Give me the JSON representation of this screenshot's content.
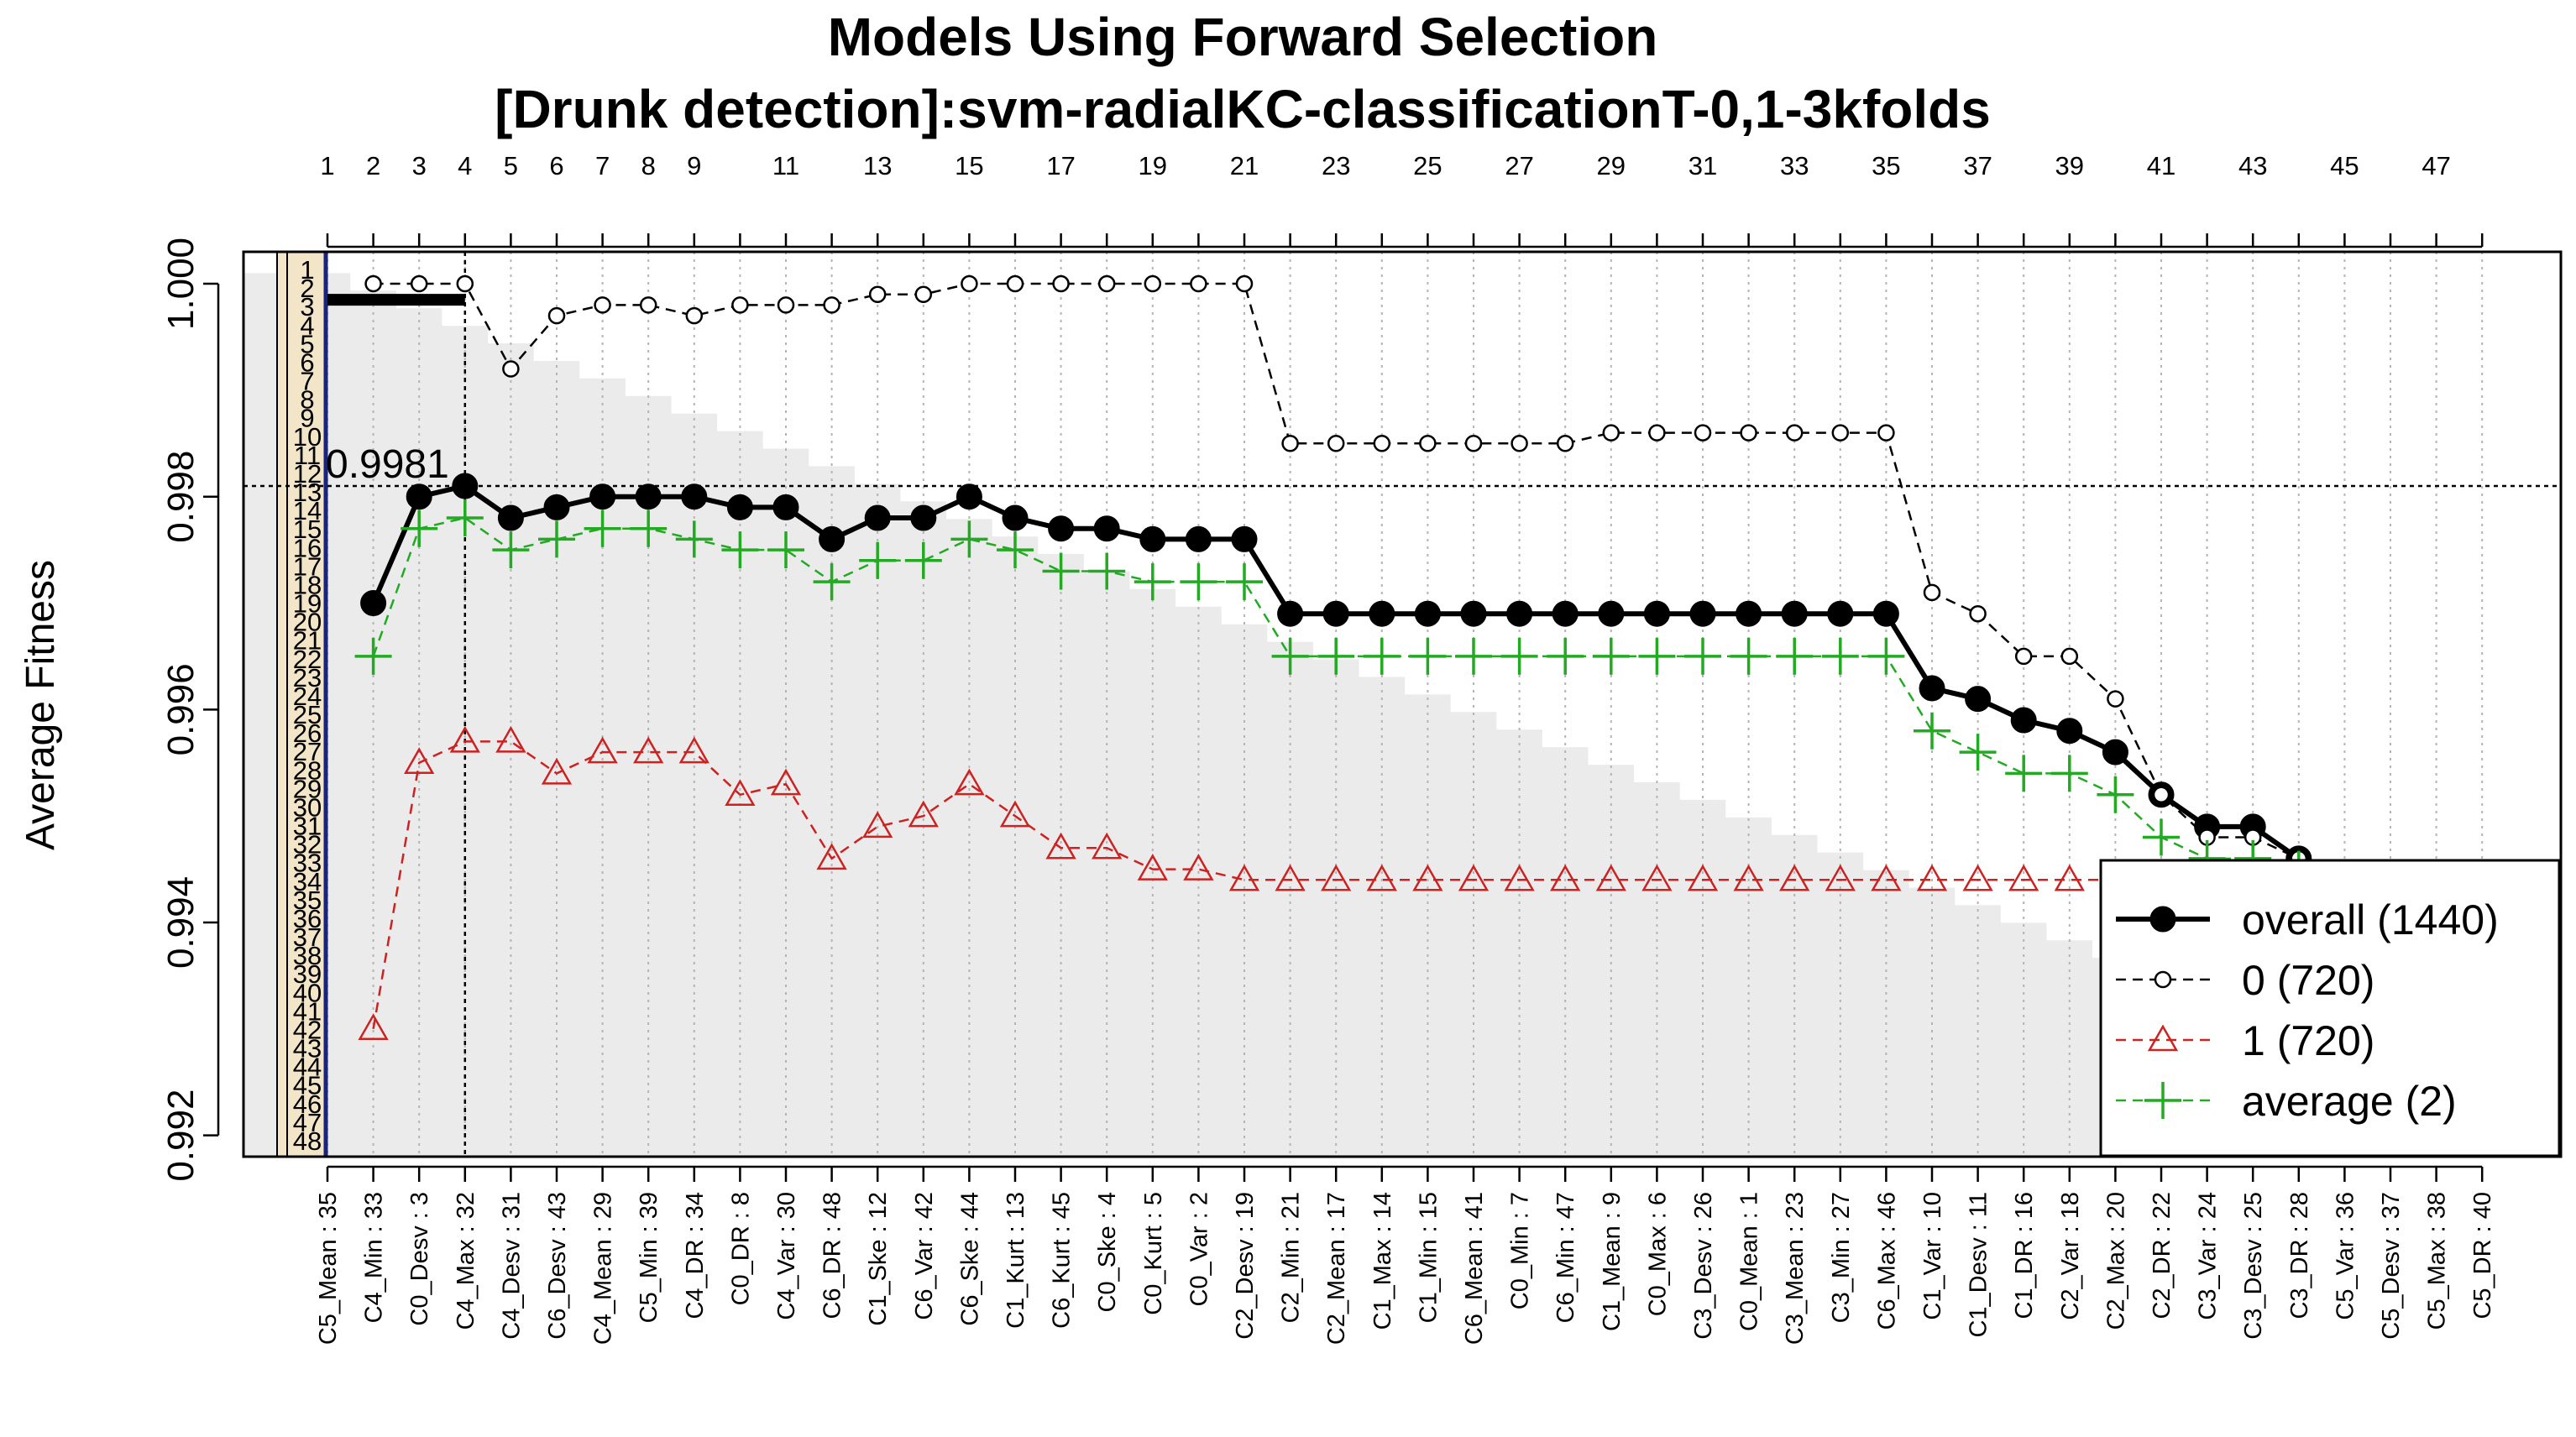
{
  "chart_data": {
    "type": "line",
    "title": "Models Using Forward Selection",
    "subtitle": "[Drunk detection]:svm-radialKC-classificationT-0,1-3kfolds",
    "ylabel": "Average Fitness",
    "xlabel": "",
    "ylim": [
      0.9918,
      1.0003
    ],
    "yticks": [
      0.992,
      0.994,
      0.996,
      0.998,
      1.0
    ],
    "ytick_labels": [
      "0.992",
      "0.994",
      "0.996",
      "0.998",
      "1.000"
    ],
    "top_ticks": [
      1,
      2,
      3,
      4,
      5,
      6,
      7,
      8,
      9,
      11,
      13,
      15,
      17,
      19,
      21,
      23,
      25,
      27,
      29,
      31,
      33,
      35,
      37,
      39,
      41,
      43,
      45,
      47
    ],
    "categories": [
      "C5_Mean : 35",
      "C4_Min : 33",
      "C0_Desv : 3",
      "C4_Max : 32",
      "C4_Desv : 31",
      "C6_Desv : 43",
      "C4_Mean : 29",
      "C5_Min : 39",
      "C4_DR : 34",
      "C0_DR : 8",
      "C4_Var : 30",
      "C6_DR : 48",
      "C1_Ske : 12",
      "C6_Var : 42",
      "C6_Ske : 44",
      "C1_Kurt : 13",
      "C6_Kurt : 45",
      "C0_Ske : 4",
      "C0_Kurt : 5",
      "C0_Var : 2",
      "C2_Desv : 19",
      "C2_Min : 21",
      "C2_Mean : 17",
      "C1_Max : 14",
      "C1_Min : 15",
      "C6_Mean : 41",
      "C0_Min : 7",
      "C6_Min : 47",
      "C1_Mean : 9",
      "C0_Max : 6",
      "C3_Desv : 26",
      "C0_Mean : 1",
      "C3_Mean : 23",
      "C3_Min : 27",
      "C6_Max : 46",
      "C1_Var : 10",
      "C1_Desv : 11",
      "C1_DR : 16",
      "C2_Var : 18",
      "C2_Max : 20",
      "C2_DR : 22",
      "C3_Var : 24",
      "C3_Desv : 25",
      "C3_DR : 28",
      "C5_Var : 36",
      "C5_Desv : 37",
      "C5_Max : 38",
      "C5_DR : 40"
    ],
    "series": [
      {
        "name": "overall (1440)",
        "color": "#000000",
        "marker": "filled-circle",
        "line": "solid",
        "values": [
          null,
          0.997,
          0.998,
          0.9981,
          0.9978,
          0.9979,
          0.998,
          0.998,
          0.998,
          0.9979,
          0.9979,
          0.9976,
          0.9978,
          0.9978,
          0.998,
          0.9978,
          0.9977,
          0.9977,
          0.9976,
          0.9976,
          0.9976,
          0.9969,
          0.9969,
          0.9969,
          0.9969,
          0.9969,
          0.9969,
          0.9969,
          0.9969,
          0.9969,
          0.9969,
          0.9969,
          0.9969,
          0.9969,
          0.9969,
          0.9962,
          0.9961,
          0.9959,
          0.9958,
          0.9956,
          0.9952,
          0.9949,
          0.9949,
          0.9946,
          null,
          null,
          null,
          null
        ]
      },
      {
        "name": "0 (720)",
        "color": "#000000",
        "marker": "open-circle",
        "line": "dashed",
        "values": [
          null,
          1.0,
          1.0,
          1.0,
          0.9992,
          0.9997,
          0.9998,
          0.9998,
          0.9997,
          0.9998,
          0.9998,
          0.9998,
          0.9999,
          0.9999,
          1.0,
          1.0,
          1.0,
          1.0,
          1.0,
          1.0,
          1.0,
          0.9985,
          0.9985,
          0.9985,
          0.9985,
          0.9985,
          0.9985,
          0.9985,
          0.9986,
          0.9986,
          0.9986,
          0.9986,
          0.9986,
          0.9986,
          0.9986,
          0.9971,
          0.9969,
          0.9965,
          0.9965,
          0.9961,
          0.9952,
          0.9948,
          0.9948,
          0.9946,
          null,
          null,
          null,
          null
        ]
      },
      {
        "name": "1 (720)",
        "color": "#cc2222",
        "marker": "open-triangle",
        "line": "dashed",
        "values": [
          null,
          0.993,
          0.9955,
          0.9957,
          0.9957,
          0.9954,
          0.9956,
          0.9956,
          0.9956,
          0.9952,
          0.9953,
          0.9946,
          0.9949,
          0.995,
          0.9953,
          0.995,
          0.9947,
          0.9947,
          0.9945,
          0.9945,
          0.9944,
          0.9944,
          0.9944,
          0.9944,
          0.9944,
          0.9944,
          0.9944,
          0.9944,
          0.9944,
          0.9944,
          0.9944,
          0.9944,
          0.9944,
          0.9944,
          0.9944,
          0.9944,
          0.9944,
          0.9944,
          0.9944,
          0.9944,
          0.9944,
          0.9944,
          0.9944,
          0.9944,
          0.9944,
          0.9944,
          0.9944,
          0.9944
        ]
      },
      {
        "name": "average (2)",
        "color": "#22aa22",
        "marker": "plus",
        "line": "dashed",
        "values": [
          null,
          0.9965,
          0.9977,
          0.9978,
          0.9975,
          0.9976,
          0.9977,
          0.9977,
          0.9976,
          0.9975,
          0.9975,
          0.9972,
          0.9974,
          0.9974,
          0.9976,
          0.9975,
          0.9973,
          0.9973,
          0.9972,
          0.9972,
          0.9972,
          0.9965,
          0.9965,
          0.9965,
          0.9965,
          0.9965,
          0.9965,
          0.9965,
          0.9965,
          0.9965,
          0.9965,
          0.9965,
          0.9965,
          0.9965,
          0.9965,
          0.9958,
          0.9956,
          0.9954,
          0.9954,
          0.9952,
          0.9948,
          0.9946,
          0.9946,
          0.9945,
          null,
          null,
          null,
          null
        ]
      }
    ],
    "reference_lines": {
      "best_value": 0.9981,
      "best_index": 4,
      "best_label": "0.9981"
    },
    "left_strip_labels": [
      "1",
      "2",
      "3",
      "4",
      "5",
      "6",
      "7",
      "8",
      "9",
      "10",
      "11",
      "12",
      "13",
      "14",
      "15",
      "16",
      "17",
      "18",
      "19",
      "20",
      "21",
      "22",
      "23",
      "24",
      "25",
      "26",
      "27",
      "28",
      "29",
      "30",
      "31",
      "32",
      "33",
      "34",
      "35",
      "36",
      "37",
      "38",
      "39",
      "40",
      "41",
      "42",
      "43",
      "44",
      "45",
      "46",
      "47",
      "48"
    ],
    "legend_position": "bottom-right",
    "grid": "vertical-dotted"
  }
}
